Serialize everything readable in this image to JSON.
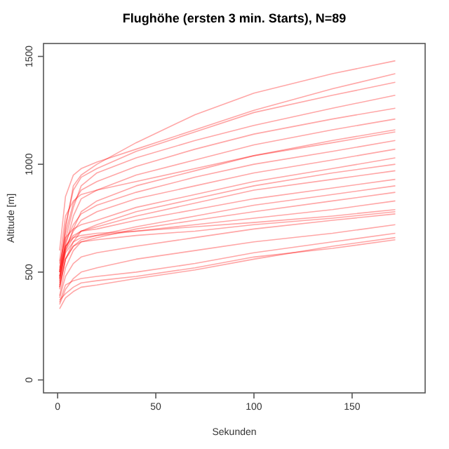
{
  "chart_data": {
    "type": "line",
    "title": "Flughöhe (ersten 3 min. Starts), N=89",
    "xlabel": "Sekunden",
    "ylabel": "Altitude [m]",
    "xlim": [
      -7.2,
      187.2
    ],
    "ylim": [
      -60,
      1560
    ],
    "xticks": [
      0,
      50,
      100,
      150
    ],
    "yticks": [
      0,
      500,
      1000,
      1500
    ],
    "x": [
      1,
      4,
      8,
      12,
      20,
      40,
      70,
      100,
      140,
      172
    ],
    "marker": "none",
    "line_style": "solid",
    "grid": false,
    "series": [
      {
        "color": "#ff0000",
        "values": [
          480,
          700,
          900,
          950,
          1000,
          1100,
          1230,
          1330,
          1420,
          1480
        ]
      },
      {
        "color": "#ff0000",
        "values": [
          500,
          720,
          880,
          940,
          980,
          1060,
          1150,
          1240,
          1320,
          1380
        ]
      },
      {
        "color": "#ff0000",
        "values": [
          450,
          650,
          800,
          900,
          960,
          1030,
          1110,
          1180,
          1260,
          1320
        ]
      },
      {
        "color": "#ff0000",
        "values": [
          520,
          680,
          820,
          880,
          920,
          990,
          1070,
          1140,
          1210,
          1260
        ]
      },
      {
        "color": "#ff0000",
        "values": [
          470,
          620,
          760,
          840,
          880,
          950,
          1020,
          1090,
          1160,
          1210
        ]
      },
      {
        "color": "#ff0000",
        "values": [
          430,
          600,
          700,
          780,
          830,
          900,
          970,
          1040,
          1110,
          1160
        ]
      },
      {
        "color": "#ff0000",
        "values": [
          500,
          640,
          720,
          770,
          810,
          870,
          940,
          1000,
          1060,
          1110
        ]
      },
      {
        "color": "#ff0000",
        "values": [
          460,
          610,
          690,
          740,
          780,
          840,
          900,
          960,
          1020,
          1070
        ]
      },
      {
        "color": "#ff0000",
        "values": [
          540,
          660,
          700,
          720,
          740,
          800,
          860,
          920,
          980,
          1030
        ]
      },
      {
        "color": "#ff0000",
        "values": [
          420,
          560,
          640,
          690,
          720,
          780,
          840,
          900,
          960,
          1000
        ]
      },
      {
        "color": "#ff0000",
        "values": [
          480,
          600,
          660,
          690,
          710,
          760,
          820,
          880,
          930,
          970
        ]
      },
      {
        "color": "#ff0000",
        "values": [
          510,
          620,
          670,
          690,
          700,
          740,
          790,
          840,
          890,
          930
        ]
      },
      {
        "color": "#ff0000",
        "values": [
          440,
          560,
          620,
          650,
          670,
          710,
          760,
          810,
          860,
          900
        ]
      },
      {
        "color": "#ff0000",
        "values": [
          390,
          520,
          600,
          640,
          660,
          700,
          740,
          780,
          830,
          870
        ]
      },
      {
        "color": "#ff0000",
        "values": [
          470,
          590,
          640,
          660,
          670,
          690,
          720,
          750,
          790,
          830
        ]
      },
      {
        "color": "#ff0000",
        "values": [
          500,
          620,
          660,
          670,
          680,
          690,
          710,
          730,
          760,
          790
        ]
      },
      {
        "color": "#ff0000",
        "values": [
          430,
          560,
          620,
          640,
          650,
          670,
          690,
          720,
          750,
          780
        ]
      },
      {
        "color": "#ff0000",
        "values": [
          380,
          480,
          540,
          570,
          590,
          620,
          660,
          700,
          740,
          770
        ]
      },
      {
        "color": "#ff0000",
        "values": [
          350,
          420,
          470,
          500,
          520,
          560,
          600,
          640,
          680,
          720
        ]
      },
      {
        "color": "#ff0000",
        "values": [
          360,
          440,
          460,
          470,
          480,
          500,
          540,
          590,
          640,
          680
        ]
      },
      {
        "color": "#ff0000",
        "values": [
          370,
          400,
          430,
          450,
          460,
          480,
          520,
          570,
          610,
          650
        ]
      },
      {
        "color": "#ff0000",
        "values": [
          600,
          850,
          950,
          980,
          1010,
          1070,
          1160,
          1250,
          1350,
          1420
        ]
      },
      {
        "color": "#ff0000",
        "values": [
          550,
          760,
          830,
          860,
          880,
          920,
          980,
          1040,
          1100,
          1150
        ]
      },
      {
        "color": "#ff0000",
        "values": [
          330,
          380,
          410,
          430,
          440,
          470,
          510,
          560,
          620,
          660
        ]
      }
    ]
  }
}
